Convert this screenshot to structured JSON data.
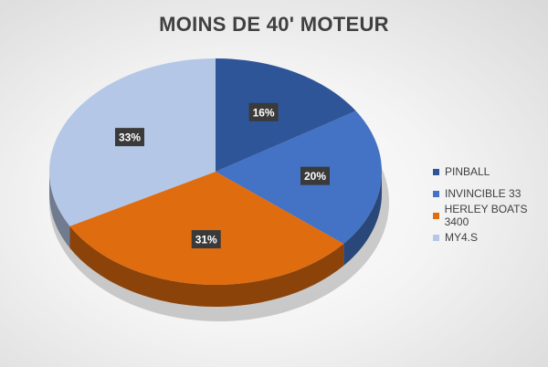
{
  "chart_data": {
    "type": "pie",
    "title": "MOINS DE 40' MOTEUR",
    "categories": [
      "PINBALL",
      "INVINCIBLE 33",
      "HERLEY BOATS 3400",
      "MY4.S"
    ],
    "values": [
      16,
      20,
      31,
      33
    ],
    "labels": [
      "16%",
      "20%",
      "31%",
      "33%"
    ],
    "colors": [
      "#2e5597",
      "#4472c4",
      "#e06c10",
      "#b4c7e7"
    ],
    "legend_position": "right",
    "style": "3d-pie"
  }
}
